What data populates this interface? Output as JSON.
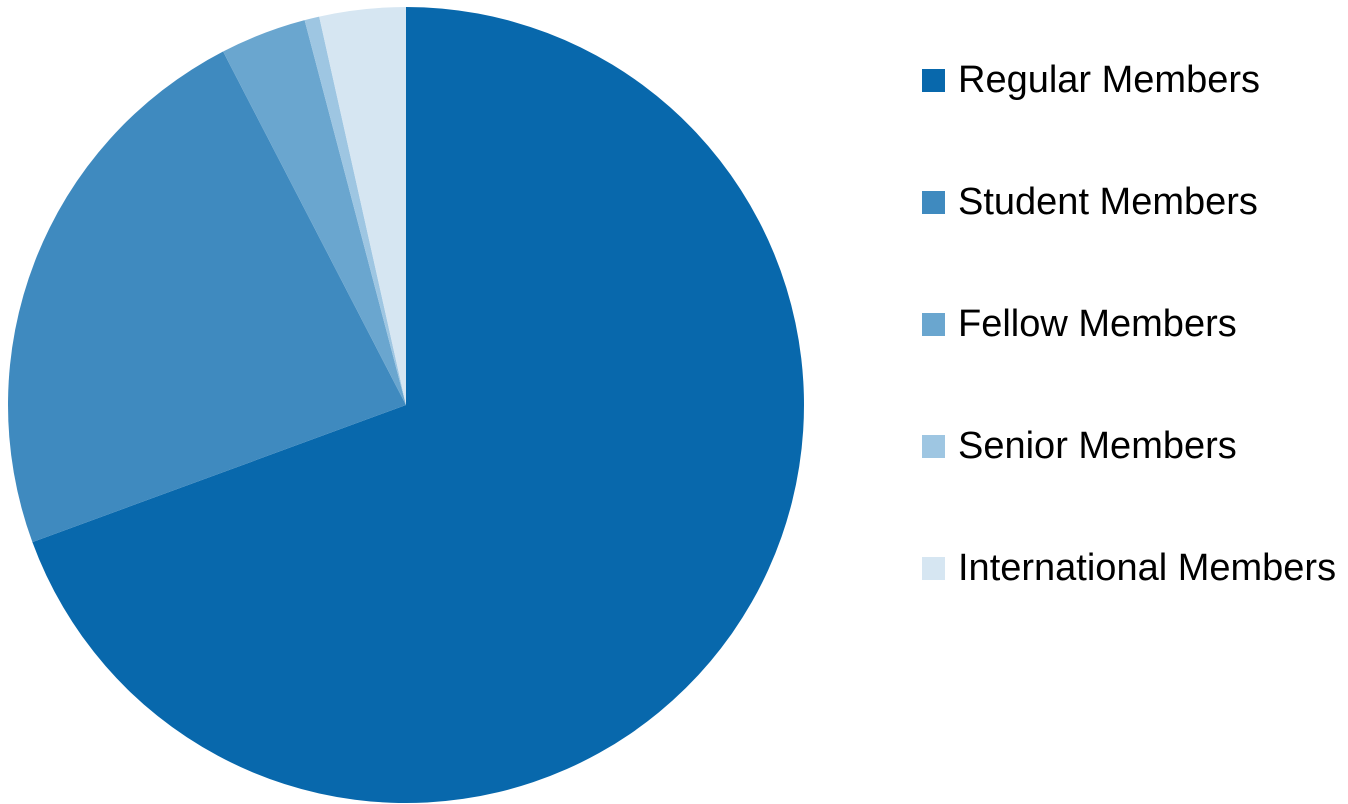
{
  "chart_data": {
    "type": "pie",
    "categories": [
      "Regular Members",
      "Student Members",
      "Fellow Members",
      "Senior Members",
      "International Members"
    ],
    "values": [
      69.4,
      23,
      3.5,
      0.6,
      3.5
    ],
    "colors": [
      "#0868ac",
      "#3f8abf",
      "#6aa6cf",
      "#9ec6e2",
      "#d6e6f2"
    ],
    "legend": "right"
  }
}
